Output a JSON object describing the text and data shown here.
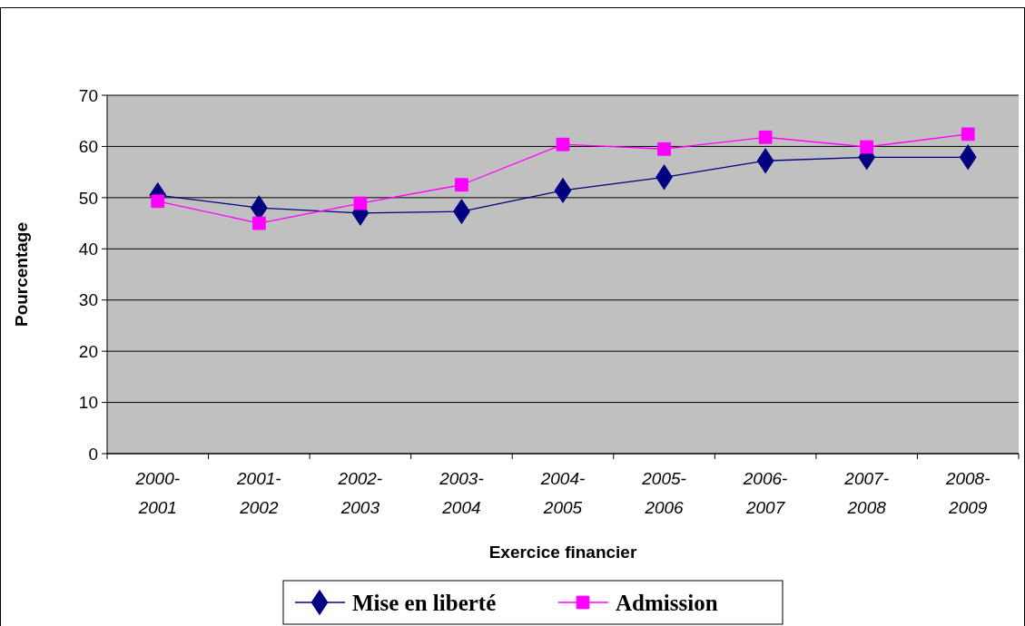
{
  "chart_data": {
    "type": "line",
    "xlabel": "Exercice financier",
    "ylabel": "Pourcentage",
    "categories": [
      "2000-2001",
      "2001-2002",
      "2002-2003",
      "2003-2004",
      "2004-2005",
      "2005-2006",
      "2006-2007",
      "2007-2008",
      "2008-2009"
    ],
    "series": [
      {
        "name": "Mise en liberté",
        "color": "#000080",
        "marker": "diamond",
        "values": [
          50.5,
          48.0,
          47.0,
          47.3,
          51.4,
          54.0,
          57.2,
          57.9,
          57.9
        ]
      },
      {
        "name": "Admission",
        "color": "#ff00ff",
        "marker": "square",
        "values": [
          49.3,
          45.0,
          48.9,
          52.5,
          60.4,
          59.5,
          61.8,
          59.9,
          62.4
        ]
      }
    ],
    "ylim": [
      0,
      70
    ],
    "yticks": [
      0,
      10,
      20,
      30,
      40,
      50,
      60,
      70
    ],
    "grid": "y",
    "legend": "bottom"
  }
}
